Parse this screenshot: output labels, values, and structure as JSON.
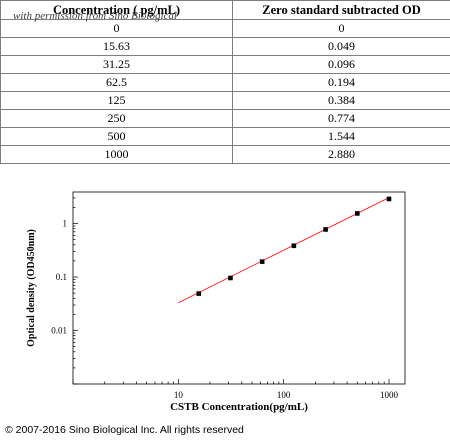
{
  "watermark": "with permission from Sino Biological",
  "table": {
    "headers": [
      "Concentration ( pg/mL)",
      "Zero standard subtracted OD"
    ],
    "rows": [
      [
        "0",
        "0"
      ],
      [
        "15.63",
        "0.049"
      ],
      [
        "31.25",
        "0.096"
      ],
      [
        "62.5",
        "0.194"
      ],
      [
        "125",
        "0.384"
      ],
      [
        "250",
        "0.774"
      ],
      [
        "500",
        "1.544"
      ],
      [
        "1000",
        "2.880"
      ]
    ]
  },
  "chart_data": {
    "type": "scatter",
    "xlabel": "CSTB Concentration(pg/mL)",
    "ylabel": "Optical density (OD450nm)",
    "xscale": "log",
    "yscale": "log",
    "xlim": [
      1,
      1000
    ],
    "ylim": [
      0.001,
      3
    ],
    "x_ticks": [
      "10",
      "100",
      "1000"
    ],
    "y_ticks": [
      "0.01",
      "0.1",
      "1"
    ],
    "grid": false,
    "series": [
      {
        "x": [
          15.63,
          31.25,
          62.5,
          125,
          250,
          500,
          1000
        ],
        "y": [
          0.049,
          0.096,
          0.194,
          0.384,
          0.774,
          1.544,
          2.88
        ],
        "marker": "square",
        "marker_color": "#000000"
      }
    ],
    "fit_line": {
      "x": [
        10,
        1000
      ],
      "y": [
        0.033,
        3.05
      ],
      "color": "#ff2a2a"
    }
  },
  "copyright": "© 2007-2016 Sino Biological Inc. All rights reserved"
}
